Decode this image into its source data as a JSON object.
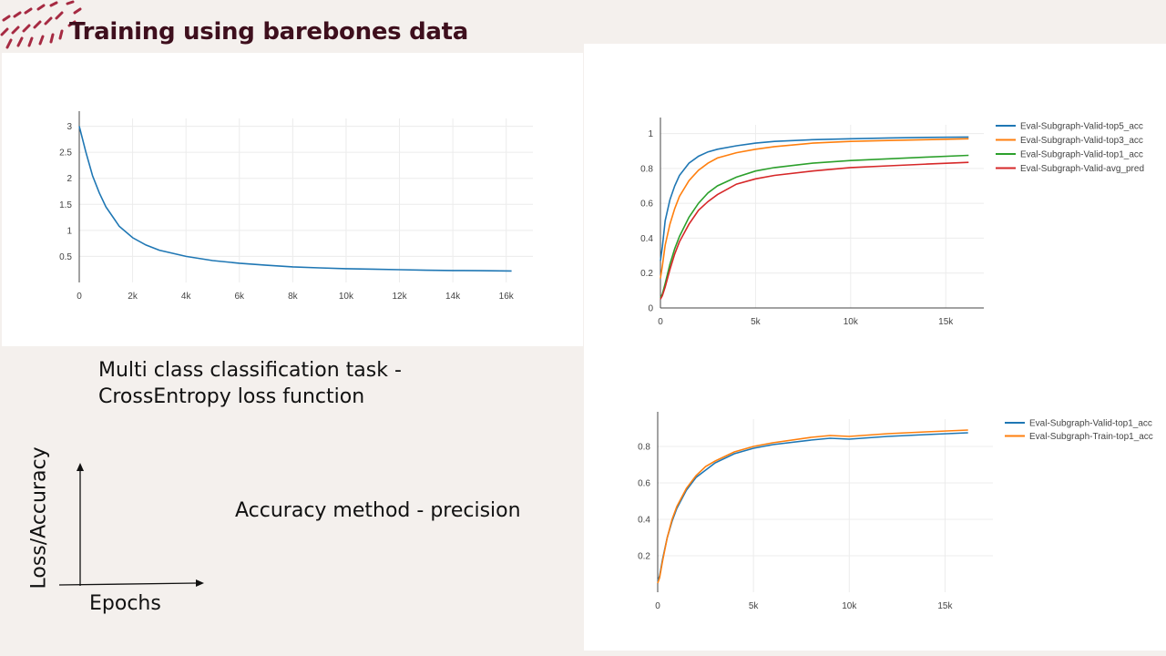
{
  "slide": {
    "title": "Training using barebones data",
    "task_text_line1": "Multi class classification task -",
    "task_text_line2": "CrossEntropy loss function",
    "accuracy_text": "Accuracy method - precision",
    "diagram": {
      "y_label": "Loss/Accuracy",
      "x_label": "Epochs"
    },
    "brand_color": "#3e0f1d",
    "deco_color": "#a62a42"
  },
  "chart_data": [
    {
      "type": "line",
      "title": "",
      "xlabel": "",
      "ylabel": "",
      "xlim": [
        0,
        17000
      ],
      "ylim": [
        0,
        3.15
      ],
      "x_ticks": [
        0,
        2000,
        4000,
        6000,
        8000,
        10000,
        12000,
        14000,
        16000
      ],
      "x_tick_labels": [
        "0",
        "2k",
        "4k",
        "6k",
        "8k",
        "10k",
        "12k",
        "14k",
        "16k"
      ],
      "y_ticks": [
        0.5,
        1,
        1.5,
        2,
        2.5,
        3
      ],
      "y_tick_labels": [
        "0.5",
        "1",
        "1.5",
        "2",
        "2.5",
        "3"
      ],
      "grid": true,
      "series": [
        {
          "color": "#1f77b4",
          "x": [
            0,
            250,
            500,
            750,
            1000,
            1500,
            2000,
            2500,
            3000,
            4000,
            5000,
            6000,
            7000,
            8000,
            9000,
            10000,
            11000,
            12000,
            13000,
            14000,
            15000,
            16200
          ],
          "y": [
            3.0,
            2.5,
            2.05,
            1.72,
            1.45,
            1.08,
            0.86,
            0.72,
            0.62,
            0.5,
            0.42,
            0.37,
            0.33,
            0.3,
            0.28,
            0.265,
            0.255,
            0.245,
            0.235,
            0.23,
            0.225,
            0.22
          ]
        }
      ]
    },
    {
      "type": "line",
      "title": "",
      "xlabel": "",
      "ylabel": "",
      "xlim": [
        0,
        17000
      ],
      "ylim": [
        0,
        1.05
      ],
      "x_ticks": [
        0,
        5000,
        10000,
        15000
      ],
      "x_tick_labels": [
        "0",
        "5k",
        "10k",
        "15k"
      ],
      "y_ticks": [
        0,
        0.2,
        0.4,
        0.6,
        0.8,
        1
      ],
      "y_tick_labels": [
        "0",
        "0.2",
        "0.4",
        "0.6",
        "0.8",
        "1"
      ],
      "grid": true,
      "legend_position": "top-right",
      "series": [
        {
          "name": "Eval-Subgraph-Valid-top5_acc",
          "color": "#1f77b4",
          "x": [
            0,
            100,
            250,
            500,
            750,
            1000,
            1500,
            2000,
            2500,
            3000,
            4000,
            5000,
            6000,
            8000,
            10000,
            12000,
            14000,
            16200
          ],
          "y": [
            0.27,
            0.35,
            0.5,
            0.62,
            0.7,
            0.76,
            0.83,
            0.87,
            0.895,
            0.91,
            0.93,
            0.945,
            0.955,
            0.965,
            0.97,
            0.975,
            0.978,
            0.98
          ]
        },
        {
          "name": "Eval-Subgraph-Valid-top3_acc",
          "color": "#ff7f0e",
          "x": [
            0,
            100,
            250,
            500,
            750,
            1000,
            1500,
            2000,
            2500,
            3000,
            4000,
            5000,
            6000,
            8000,
            10000,
            12000,
            14000,
            16200
          ],
          "y": [
            0.17,
            0.24,
            0.36,
            0.48,
            0.57,
            0.64,
            0.73,
            0.79,
            0.83,
            0.86,
            0.89,
            0.91,
            0.925,
            0.945,
            0.955,
            0.96,
            0.965,
            0.97
          ]
        },
        {
          "name": "Eval-Subgraph-Valid-top1_acc",
          "color": "#2ca02c",
          "x": [
            0,
            100,
            250,
            500,
            750,
            1000,
            1500,
            2000,
            2500,
            3000,
            4000,
            5000,
            6000,
            8000,
            10000,
            12000,
            14000,
            16200
          ],
          "y": [
            0.06,
            0.08,
            0.14,
            0.25,
            0.34,
            0.41,
            0.52,
            0.6,
            0.66,
            0.7,
            0.75,
            0.785,
            0.805,
            0.83,
            0.845,
            0.855,
            0.865,
            0.875
          ]
        },
        {
          "name": "Eval-Subgraph-Valid-avg_pred",
          "color": "#d62728",
          "x": [
            0,
            100,
            250,
            500,
            750,
            1000,
            1500,
            2000,
            2500,
            3000,
            4000,
            5000,
            6000,
            8000,
            10000,
            12000,
            14000,
            16200
          ],
          "y": [
            0.05,
            0.07,
            0.12,
            0.22,
            0.31,
            0.38,
            0.48,
            0.56,
            0.61,
            0.65,
            0.71,
            0.74,
            0.76,
            0.785,
            0.805,
            0.815,
            0.825,
            0.835
          ]
        }
      ]
    },
    {
      "type": "line",
      "title": "",
      "xlabel": "",
      "ylabel": "",
      "xlim": [
        0,
        17500
      ],
      "ylim": [
        0,
        0.95
      ],
      "x_ticks": [
        0,
        5000,
        10000,
        15000
      ],
      "x_tick_labels": [
        "0",
        "5k",
        "10k",
        "15k"
      ],
      "y_ticks": [
        0.2,
        0.4,
        0.6,
        0.8
      ],
      "y_tick_labels": [
        "0.2",
        "0.4",
        "0.6",
        "0.8"
      ],
      "grid": true,
      "legend_position": "top-right",
      "series": [
        {
          "name": "Eval-Subgraph-Valid-top1_acc",
          "color": "#1f77b4",
          "x": [
            0,
            100,
            250,
            500,
            750,
            1000,
            1500,
            2000,
            2500,
            3000,
            4000,
            5000,
            6000,
            8000,
            9000,
            10000,
            12000,
            14000,
            16200
          ],
          "y": [
            0.06,
            0.09,
            0.18,
            0.3,
            0.39,
            0.46,
            0.56,
            0.63,
            0.67,
            0.71,
            0.76,
            0.79,
            0.81,
            0.835,
            0.845,
            0.84,
            0.855,
            0.865,
            0.875
          ]
        },
        {
          "name": "Eval-Subgraph-Train-top1_acc",
          "color": "#ff7f0e",
          "x": [
            0,
            100,
            250,
            500,
            750,
            1000,
            1500,
            2000,
            2500,
            3000,
            4000,
            5000,
            6000,
            8000,
            9000,
            10000,
            12000,
            14000,
            16200
          ],
          "y": [
            0.05,
            0.08,
            0.17,
            0.3,
            0.4,
            0.47,
            0.57,
            0.64,
            0.69,
            0.72,
            0.77,
            0.8,
            0.82,
            0.85,
            0.86,
            0.855,
            0.87,
            0.88,
            0.89
          ]
        }
      ]
    }
  ]
}
